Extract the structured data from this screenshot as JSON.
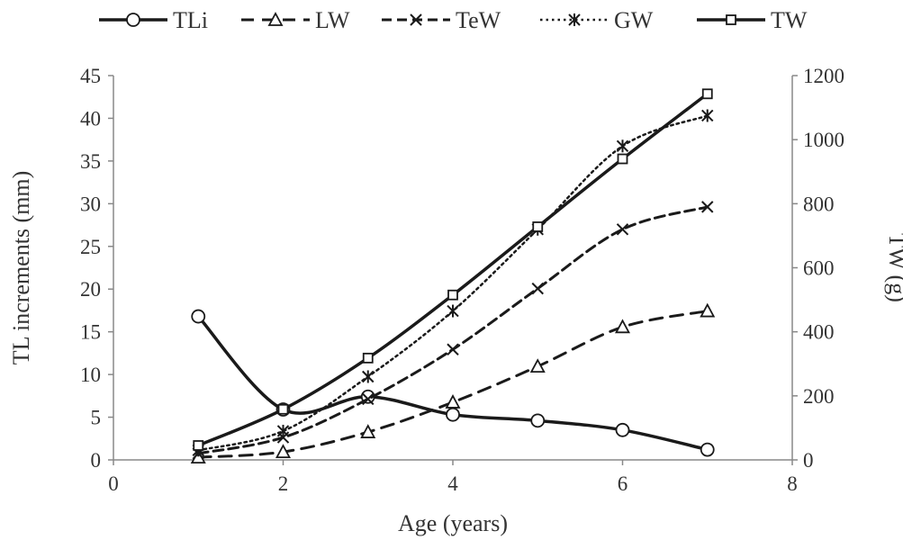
{
  "chart_data": {
    "type": "line",
    "title": "",
    "xlabel": "Age (years)",
    "ylabel_left": "TL increments (mm)",
    "ylabel_right": "TW (g)",
    "xlim": [
      0,
      8
    ],
    "ylim_left": [
      0,
      45
    ],
    "ylim_right": [
      0,
      1200
    ],
    "x_ticks": [
      "0",
      "2",
      "4",
      "6",
      "8"
    ],
    "y_left_ticks": [
      "0",
      "5",
      "10",
      "15",
      "20",
      "25",
      "30",
      "35",
      "40",
      "45"
    ],
    "y_right_ticks": [
      "0",
      "200",
      "400",
      "600",
      "800",
      "1000",
      "1200"
    ],
    "grid": false,
    "legend_position": "top",
    "series": [
      {
        "name": "TLi",
        "axis": "left",
        "marker": "circle",
        "dash": "solid",
        "color": "#1a1a1a",
        "x": [
          1,
          2,
          3,
          4,
          5,
          6,
          7
        ],
        "values": [
          16.8,
          5.9,
          7.4,
          5.3,
          4.6,
          3.5,
          1.2
        ]
      },
      {
        "name": "LW",
        "axis": "right",
        "marker": "triangle",
        "dash": "long",
        "color": "#1a1a1a",
        "x": [
          1,
          2,
          3,
          4,
          5,
          6,
          7
        ],
        "values": [
          8,
          25,
          87,
          180,
          292,
          415,
          465
        ]
      },
      {
        "name": "TeW",
        "axis": "right",
        "marker": "x",
        "dash": "medium",
        "color": "#1a1a1a",
        "x": [
          1,
          2,
          3,
          4,
          5,
          6,
          7
        ],
        "values": [
          20,
          70,
          190,
          345,
          535,
          720,
          790
        ]
      },
      {
        "name": "GW",
        "axis": "right",
        "marker": "asterisk",
        "dash": "dotted",
        "color": "#1a1a1a",
        "x": [
          1,
          2,
          3,
          4,
          5,
          6,
          7
        ],
        "values": [
          30,
          90,
          260,
          465,
          720,
          980,
          1075
        ]
      },
      {
        "name": "TW",
        "axis": "right",
        "marker": "square",
        "dash": "solid",
        "color": "#1a1a1a",
        "x": [
          1,
          2,
          3,
          4,
          5,
          6,
          7
        ],
        "values": [
          45,
          158,
          318,
          515,
          728,
          940,
          1143
        ]
      }
    ]
  }
}
